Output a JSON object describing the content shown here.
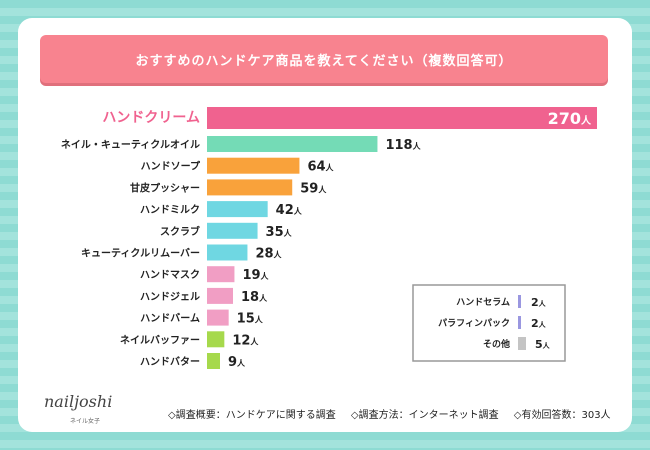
{
  "title": "おすすめのハンドケア商品を教えてください（複数回答可）",
  "chart_data": {
    "type": "bar",
    "orientation": "horizontal",
    "unit": "人",
    "categories": [
      "ハンドクリーム",
      "ネイル・キューティクルオイル",
      "ハンドソープ",
      "甘皮プッシャー",
      "ハンドミルク",
      "スクラブ",
      "キューティクルリムーバー",
      "ハンドマスク",
      "ハンドジェル",
      "ハンドバーム",
      "ネイルバッファー",
      "ハンドバター"
    ],
    "values": [
      270,
      118,
      64,
      59,
      42,
      35,
      28,
      19,
      18,
      15,
      12,
      9
    ],
    "colors": [
      "#f0628f",
      "#74dbb6",
      "#f9a23b",
      "#f9a23b",
      "#6fd7e2",
      "#6fd7e2",
      "#6fd7e2",
      "#f19ec4",
      "#f19ec4",
      "#f19ec4",
      "#a6d94c",
      "#a6d94c"
    ],
    "inset": {
      "categories": [
        "ハンドセラム",
        "パラフィンパック",
        "その他"
      ],
      "values": [
        2,
        2,
        5
      ],
      "colors": [
        "#9a97e0",
        "#9a97e0",
        "#c4c4c4"
      ]
    }
  },
  "logo": {
    "name": "nailjoshi",
    "sub": "ネイル女子"
  },
  "footer": [
    "◇調査概要：ハンドケアに関する調査",
    "◇調査方法：インターネット調査",
    "◇有効回答数：303人"
  ]
}
